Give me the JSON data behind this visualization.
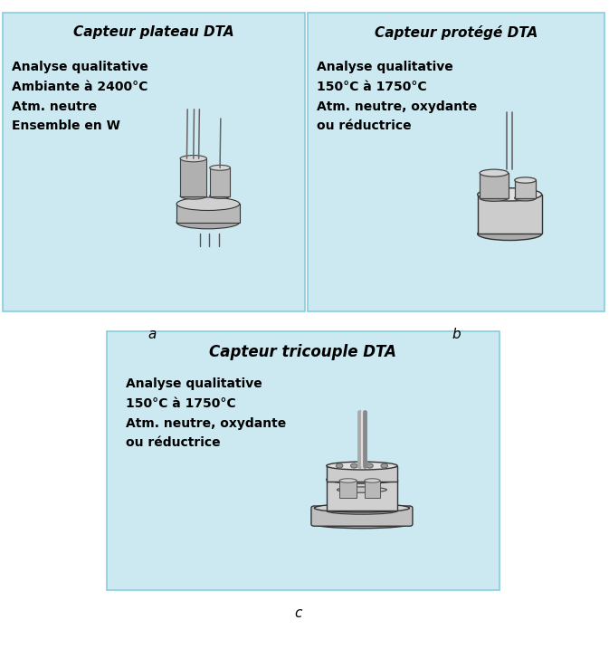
{
  "bg_color": "#ffffff",
  "panel_bg": "#cce8f0",
  "panel_border": "#88ccdd",
  "title_a": "Capteur plateau DTA",
  "title_b": "Capteur protégé DTA",
  "title_c": "Capteur tricouple DTA",
  "text_a": "Analyse qualitative\nAmbiante à 2400°C\nAtm. neutre\nEnsemble en W",
  "text_b": "Analyse qualitative\n150°C à 1750°C\nAtm. neutre, oxydante\nou réductrice",
  "text_c": "Analyse qualitative\n150°C à 1750°C\nAtm. neutre, oxydante\nou réductrice",
  "label_a": "a",
  "label_b": "b",
  "label_c": "c",
  "title_fontsize": 11,
  "text_fontsize": 10,
  "label_fontsize": 11
}
